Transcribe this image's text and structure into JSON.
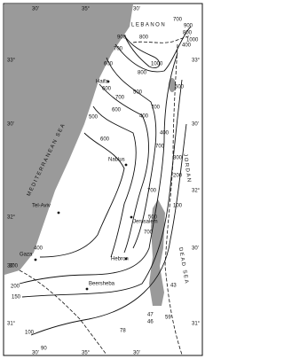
{
  "map": {
    "regions": {
      "sea": "MEDITERRANEAN SEA",
      "lebanon": "LEBANON",
      "jordan": "JORDAN",
      "dead_sea": "DEAD SEA"
    },
    "cities": [
      "Haifa",
      "Tel-Aviv",
      "Gaza",
      "Nablus",
      "Jerusalem",
      "Hebron",
      "Beersheba"
    ],
    "isohyet_labels": [
      "700",
      "900",
      "800",
      "1000",
      "400",
      "900",
      "800",
      "700",
      "1000",
      "600",
      "800",
      "500",
      "600",
      "500",
      "700",
      "600",
      "500",
      "400",
      "700",
      "400",
      "600",
      "700",
      "300",
      "200",
      "700",
      "500",
      "700",
      "100",
      "400",
      "300",
      "200",
      "150",
      "100",
      "90",
      "78",
      "43",
      "47",
      "46",
      "59"
    ],
    "grid_labels": {
      "top": [
        "30'",
        "35°",
        "30'"
      ],
      "bottom": [
        "30'",
        "35°",
        "30'"
      ],
      "left": [
        "33°",
        "30'",
        "32°",
        "30'",
        "31°"
      ],
      "right": [
        "33°",
        "30'",
        "32°",
        "30'",
        "31°"
      ]
    }
  }
}
